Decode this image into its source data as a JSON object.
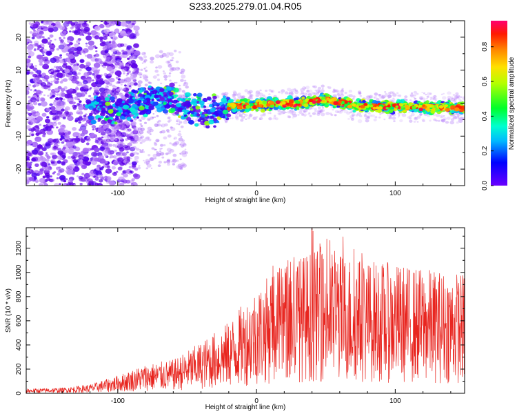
{
  "figure_title": "S233.2025.279.01.04.R05",
  "colors": {
    "snr_line": "#e8251f",
    "frame": "#000000",
    "background": "#ffffff"
  },
  "chart_data": [
    {
      "type": "heatmap",
      "title": "S233.2025.279.01.04.R05",
      "xlabel": "Height of straight line (km)",
      "ylabel": "Frequency (Hz)",
      "xlim": [
        -166,
        150
      ],
      "ylim": [
        -25,
        25
      ],
      "xticks": [
        -100,
        0,
        100
      ],
      "yticks": [
        -20,
        -10,
        0,
        10,
        20
      ],
      "colorbar": {
        "label": "Normalized spectral amplitude",
        "range": [
          0,
          0.95
        ],
        "ticks": [
          "0.0",
          "0.2",
          "0.4",
          "0.6",
          "0.8"
        ],
        "tick_values": [
          0,
          0.2,
          0.4,
          0.6,
          0.8
        ],
        "colormap": [
          "#ffffff",
          "#a855f7",
          "#6a00ff",
          "#0000ff",
          "#00e5ff",
          "#00ff4c",
          "#c8ff00",
          "#ffd400",
          "#ff6a00",
          "#ff0000",
          "#ff0070"
        ]
      },
      "signal_trace": [
        {
          "x": -120,
          "y": -1.5
        },
        {
          "x": -100,
          "y": -2.0
        },
        {
          "x": -80,
          "y": 0.5
        },
        {
          "x": -65,
          "y": 2.0
        },
        {
          "x": -50,
          "y": -1.0
        },
        {
          "x": -35,
          "y": -3.0
        },
        {
          "x": -20,
          "y": -1.0
        },
        {
          "x": 0,
          "y": -0.5
        },
        {
          "x": 30,
          "y": 0.0
        },
        {
          "x": 50,
          "y": 1.0
        },
        {
          "x": 75,
          "y": -1.0
        },
        {
          "x": 100,
          "y": -1.0
        },
        {
          "x": 150,
          "y": -1.5
        }
      ]
    },
    {
      "type": "line",
      "title": "",
      "xlabel": "Height of straight line (km)",
      "ylabel": "SNR (10 * v/v)",
      "xlim": [
        -166,
        150
      ],
      "ylim": [
        0,
        1370
      ],
      "xticks": [
        -100,
        0,
        100
      ],
      "yticks": [
        0,
        200,
        400,
        600,
        800,
        1000,
        1200
      ],
      "envelope": [
        {
          "x": -166,
          "y": 20
        },
        {
          "x": -140,
          "y": 25
        },
        {
          "x": -120,
          "y": 40
        },
        {
          "x": -100,
          "y": 80
        },
        {
          "x": -80,
          "y": 130
        },
        {
          "x": -60,
          "y": 150
        },
        {
          "x": -40,
          "y": 230
        },
        {
          "x": -20,
          "y": 320
        },
        {
          "x": 0,
          "y": 480
        },
        {
          "x": 20,
          "y": 580
        },
        {
          "x": 40,
          "y": 640
        },
        {
          "x": 60,
          "y": 630
        },
        {
          "x": 80,
          "y": 600
        },
        {
          "x": 100,
          "y": 580
        },
        {
          "x": 120,
          "y": 560
        },
        {
          "x": 150,
          "y": 540
        }
      ],
      "peak": {
        "x": 40,
        "y": 1370
      }
    }
  ]
}
